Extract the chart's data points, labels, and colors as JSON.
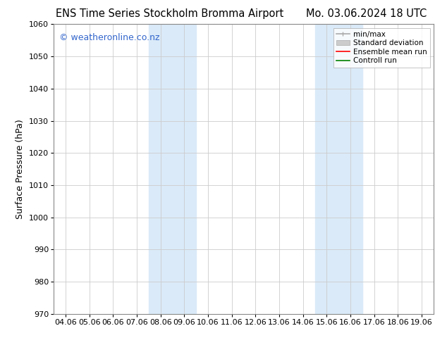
{
  "title_left": "ENS Time Series Stockholm Bromma Airport",
  "title_right": "Mo. 03.06.2024 18 UTC",
  "ylabel": "Surface Pressure (hPa)",
  "ylim": [
    970,
    1060
  ],
  "yticks": [
    970,
    980,
    990,
    1000,
    1010,
    1020,
    1030,
    1040,
    1050,
    1060
  ],
  "xtick_labels": [
    "04.06",
    "05.06",
    "06.06",
    "07.06",
    "08.06",
    "09.06",
    "10.06",
    "11.06",
    "12.06",
    "13.06",
    "14.06",
    "15.06",
    "16.06",
    "17.06",
    "18.06",
    "19.06"
  ],
  "shaded_regions": [
    {
      "start": 4,
      "end": 6,
      "color": "#daeaf8"
    },
    {
      "start": 11,
      "end": 13,
      "color": "#daeaf8"
    }
  ],
  "watermark_text": "© weatheronline.co.nz",
  "watermark_color": "#3366cc",
  "bg_color": "#ffffff",
  "plot_bg_color": "#ffffff",
  "grid_color": "#cccccc",
  "title_fontsize": 10.5,
  "ylabel_fontsize": 9,
  "tick_fontsize": 8,
  "watermark_fontsize": 9,
  "legend_fontsize": 7.5
}
